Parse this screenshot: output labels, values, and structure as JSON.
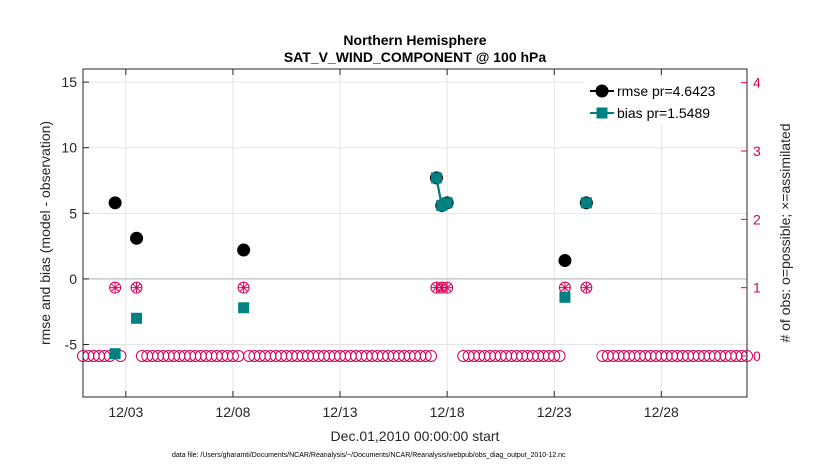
{
  "chart_data": {
    "type": "scatter",
    "title_line1": "Northern Hemisphere",
    "title_line2": "SAT_V_WIND_COMPONENT @ 100 hPa",
    "xlabel": "Dec.01,2010 00:00:00 start",
    "ylabel": "rmse and bias (model - observation)",
    "y2label": "# of obs: o=possible; ×=assimilated",
    "xlim": [
      0.0,
      31.0
    ],
    "ylim": [
      -9,
      16
    ],
    "y2lim": [
      -0.6,
      4.2
    ],
    "x_ticks": [
      2,
      7,
      12,
      17,
      22,
      27
    ],
    "x_tick_labels": [
      "12/03",
      "12/08",
      "12/13",
      "12/18",
      "12/23",
      "12/28"
    ],
    "y_ticks": [
      -5,
      0,
      5,
      10,
      15
    ],
    "y_tick_labels": [
      "-5",
      "0",
      "5",
      "10",
      "15"
    ],
    "y2_ticks": [
      0,
      1,
      2,
      3,
      4
    ],
    "y2_tick_labels": [
      "0",
      "1",
      "2",
      "3",
      "4"
    ],
    "grid": true,
    "legend_position": "top-right",
    "colors": {
      "rmse": "#000000",
      "bias": "#008080",
      "obs": "#d6005a",
      "zero_line": "#bbbbbb",
      "grid": "#e4e4e4"
    },
    "series": [
      {
        "name": "rmse pr=4.6423",
        "key": "rmse",
        "segments": [
          [
            [
              1.5,
              5.8
            ]
          ],
          [
            [
              2.5,
              3.1
            ]
          ],
          [
            [
              7.5,
              2.2
            ]
          ],
          [
            [
              16.5,
              7.7
            ],
            [
              16.75,
              5.6
            ],
            [
              17.0,
              5.8
            ]
          ],
          [
            [
              22.5,
              1.4
            ]
          ],
          [
            [
              23.5,
              5.8
            ]
          ]
        ]
      },
      {
        "name": "bias pr=1.5489",
        "key": "bias",
        "segments": [
          [
            [
              1.5,
              -5.7
            ]
          ],
          [
            [
              2.5,
              -3.0
            ]
          ],
          [
            [
              7.5,
              -2.2
            ]
          ],
          [
            [
              16.5,
              7.7
            ],
            [
              16.75,
              5.6
            ],
            [
              17.0,
              5.8
            ]
          ],
          [
            [
              22.5,
              -1.4
            ]
          ],
          [
            [
              23.5,
              5.8
            ]
          ]
        ]
      }
    ],
    "obs_counts": {
      "start": 0.0,
      "step": 0.25,
      "possible_ones": [
        1.5,
        2.5,
        7.5,
        16.5,
        16.75,
        17.0,
        22.5,
        23.5
      ],
      "assimilated_ones": [
        1.5,
        2.5,
        7.5,
        16.5,
        16.75,
        17.0,
        22.5,
        23.5
      ],
      "missing": [
        2.0,
        2.25,
        16.75,
        17.0,
        17.25,
        17.5,
        22.75,
        23.0,
        23.25,
        23.75,
        24.0
      ]
    },
    "footer": "data file: /Users/gharamti/Documents/NCAR/Reanalysis/~/Documents/NCAR/Reanalysis/webpub/obs_diag_output_2010-12.nc"
  }
}
